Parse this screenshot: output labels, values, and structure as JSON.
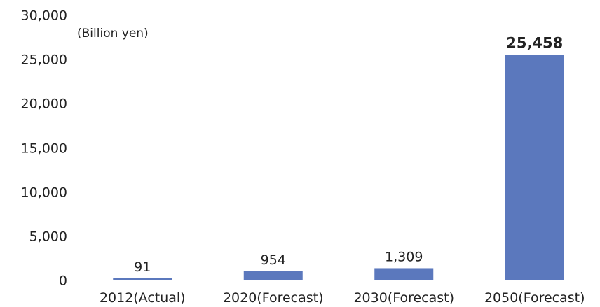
{
  "chart_data": {
    "type": "bar",
    "title": "",
    "xlabel": "",
    "ylabel": "",
    "unit_note": "(Billion yen)",
    "categories": [
      "2012(Actual)",
      "2020(Forecast)",
      "2030(Forecast)",
      "2050(Forecast)"
    ],
    "values": [
      91,
      954,
      1309,
      25458
    ],
    "data_labels": [
      "91",
      "954",
      "1,309",
      "25,458"
    ],
    "highlight_index": 3,
    "ylim": [
      0,
      30000
    ],
    "y_ticks": [
      0,
      5000,
      10000,
      15000,
      20000,
      25000,
      30000
    ],
    "y_tick_labels": [
      "0",
      "5,000",
      "10,000",
      "15,000",
      "20,000",
      "25,000",
      "30,000"
    ],
    "grid": true,
    "legend": "none",
    "colors": {
      "bar": "#5b78bd",
      "highlight_label": "#e60012",
      "grid": "#d9d9d9",
      "text": "#222222"
    }
  }
}
